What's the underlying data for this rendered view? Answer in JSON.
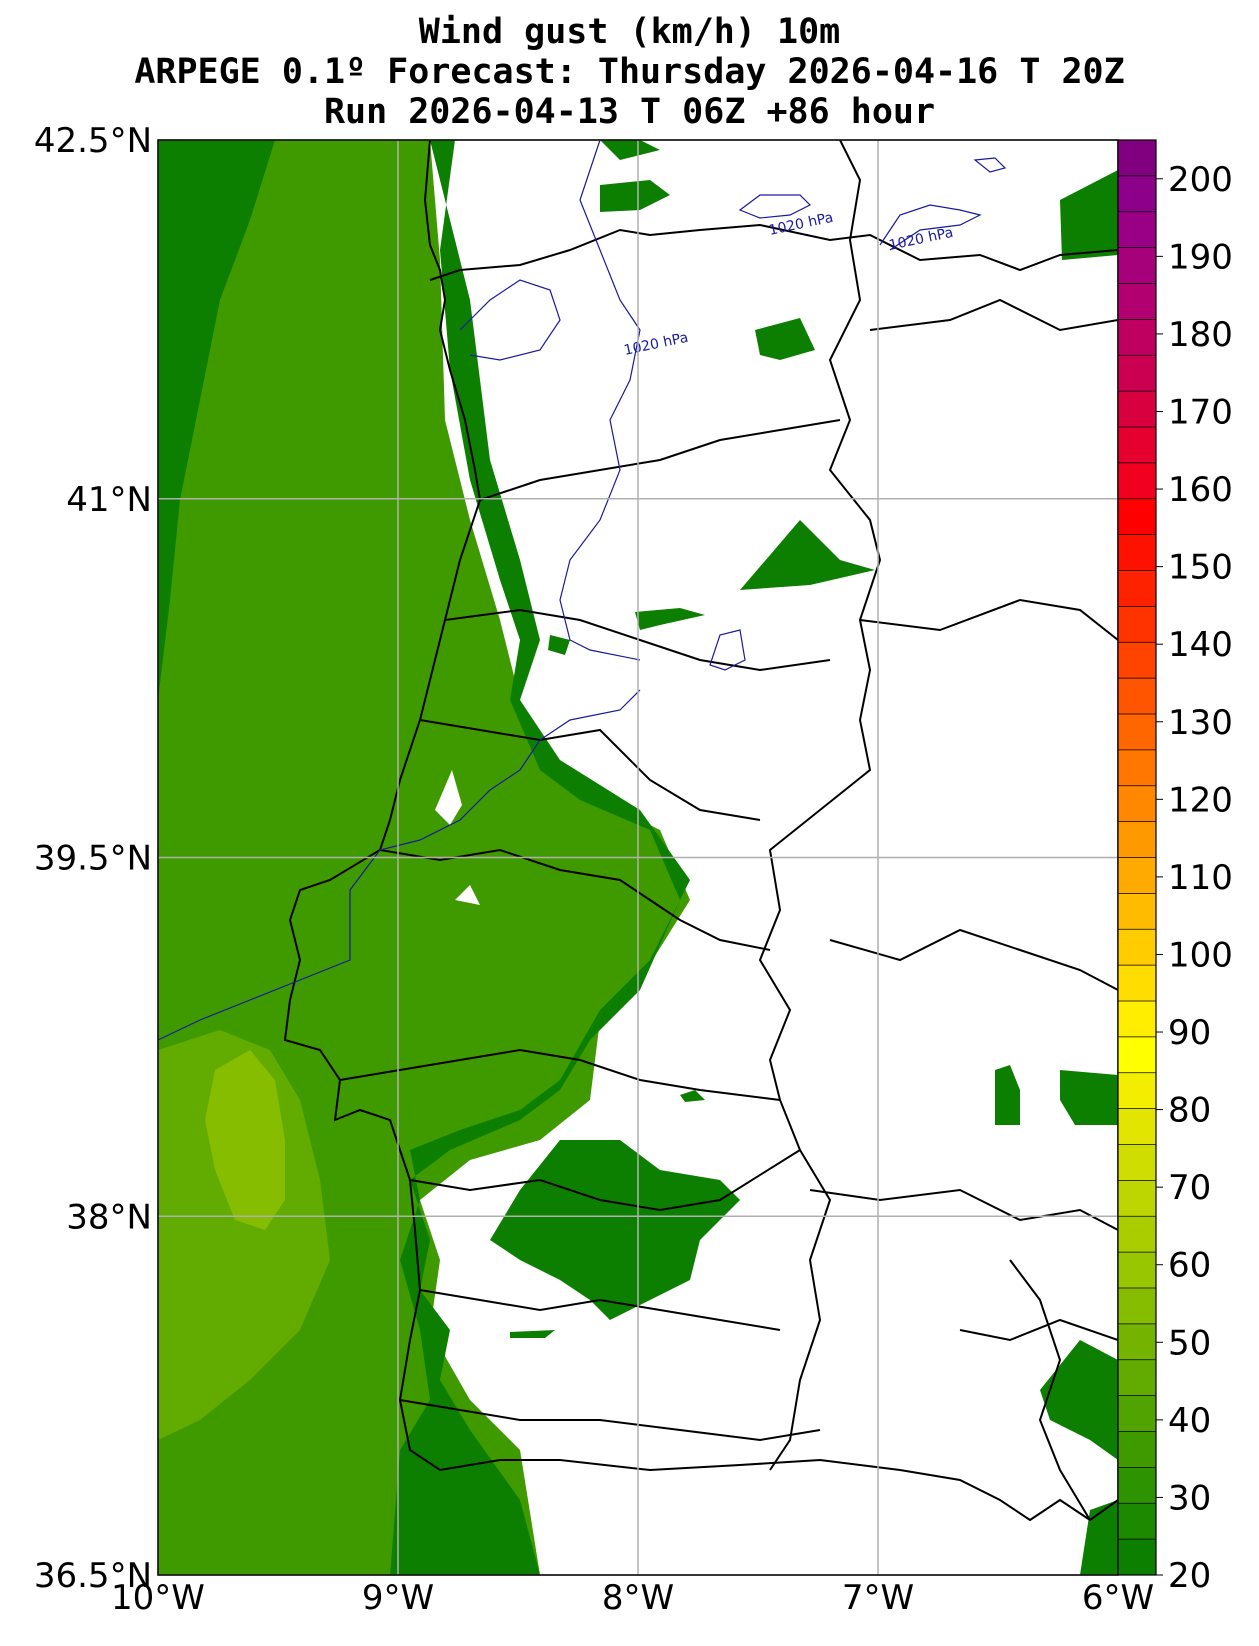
{
  "title": {
    "line1": "Wind gust (km/h) 10m",
    "line2": "ARPEGE 0.1º Forecast: Thursday 2026-04-16 T 20Z",
    "line3": "Run 2026-04-13 T 06Z +86 hour"
  },
  "map": {
    "lon_range": [
      -10,
      -6
    ],
    "lat_range": [
      36.5,
      42.5
    ],
    "x_ticks": [
      {
        "value": -10,
        "label": "10°W"
      },
      {
        "value": -9,
        "label": "9°W"
      },
      {
        "value": -8,
        "label": "8°W"
      },
      {
        "value": -7,
        "label": "7°W"
      },
      {
        "value": -6,
        "label": "6°W"
      }
    ],
    "y_ticks": [
      {
        "value": 42.5,
        "label": "42.5°N"
      },
      {
        "value": 41,
        "label": "41°N"
      },
      {
        "value": 39.5,
        "label": "39.5°N"
      },
      {
        "value": 38,
        "label": "38°N"
      },
      {
        "value": 36.5,
        "label": "36.5°N"
      }
    ],
    "grid": true,
    "isobar_labels": [
      "1020 hPa",
      "1020 hPa",
      "1020 hPa"
    ]
  },
  "colorbar": {
    "min": 20,
    "max": 205,
    "step": 5,
    "tick_labels": [
      "20",
      "30",
      "40",
      "50",
      "60",
      "70",
      "80",
      "90",
      "100",
      "110",
      "120",
      "130",
      "140",
      "150",
      "160",
      "170",
      "180",
      "190",
      "200"
    ],
    "colors": [
      "#0c7f00",
      "#1d8900",
      "#2e9300",
      "#3f9a00",
      "#50a300",
      "#62ab00",
      "#74b400",
      "#86bd00",
      "#98c600",
      "#aacd00",
      "#bdd500",
      "#d0dd00",
      "#e2e500",
      "#f3ee00",
      "#ffff00",
      "#ffee00",
      "#ffdd00",
      "#ffcc00",
      "#ffbb00",
      "#ffaa00",
      "#ff9900",
      "#ff8800",
      "#ff7700",
      "#ff6600",
      "#ff5500",
      "#ff4400",
      "#ff3300",
      "#ff2200",
      "#ff1100",
      "#ff0000",
      "#f20020",
      "#e60030",
      "#d90040",
      "#cc0050",
      "#bf0060",
      "#b30070",
      "#a6007b",
      "#990085",
      "#8c008a",
      "#800080"
    ]
  }
}
